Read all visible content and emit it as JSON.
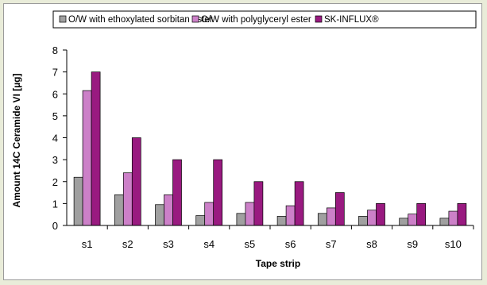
{
  "chart_data": {
    "type": "bar",
    "categories": [
      "s1",
      "s2",
      "s3",
      "s4",
      "s5",
      "s6",
      "s7",
      "s8",
      "s9",
      "s10"
    ],
    "series": [
      {
        "name": "O/W with ethoxylated sorbitan ester",
        "color": "#a0a0a0",
        "values": [
          2.2,
          1.4,
          0.95,
          0.45,
          0.55,
          0.42,
          0.55,
          0.42,
          0.33,
          0.33
        ]
      },
      {
        "name": "O/W with polyglyceryl ester",
        "color": "#cc80c8",
        "values": [
          6.15,
          2.4,
          1.4,
          1.05,
          1.05,
          0.9,
          0.8,
          0.7,
          0.52,
          0.65
        ]
      },
      {
        "name": "SK-INFLUX®",
        "color": "#991a80",
        "values": [
          7.0,
          4.0,
          3.0,
          3.0,
          2.0,
          2.0,
          1.5,
          1.0,
          1.0,
          1.0
        ]
      }
    ],
    "xlabel": "Tape strip",
    "ylabel": "Amount 14C Ceramide VI [µg]",
    "ylim": [
      0,
      8
    ],
    "yticks": [
      0,
      1,
      2,
      3,
      4,
      5,
      6,
      7,
      8
    ],
    "grid": false,
    "legend": "top"
  }
}
